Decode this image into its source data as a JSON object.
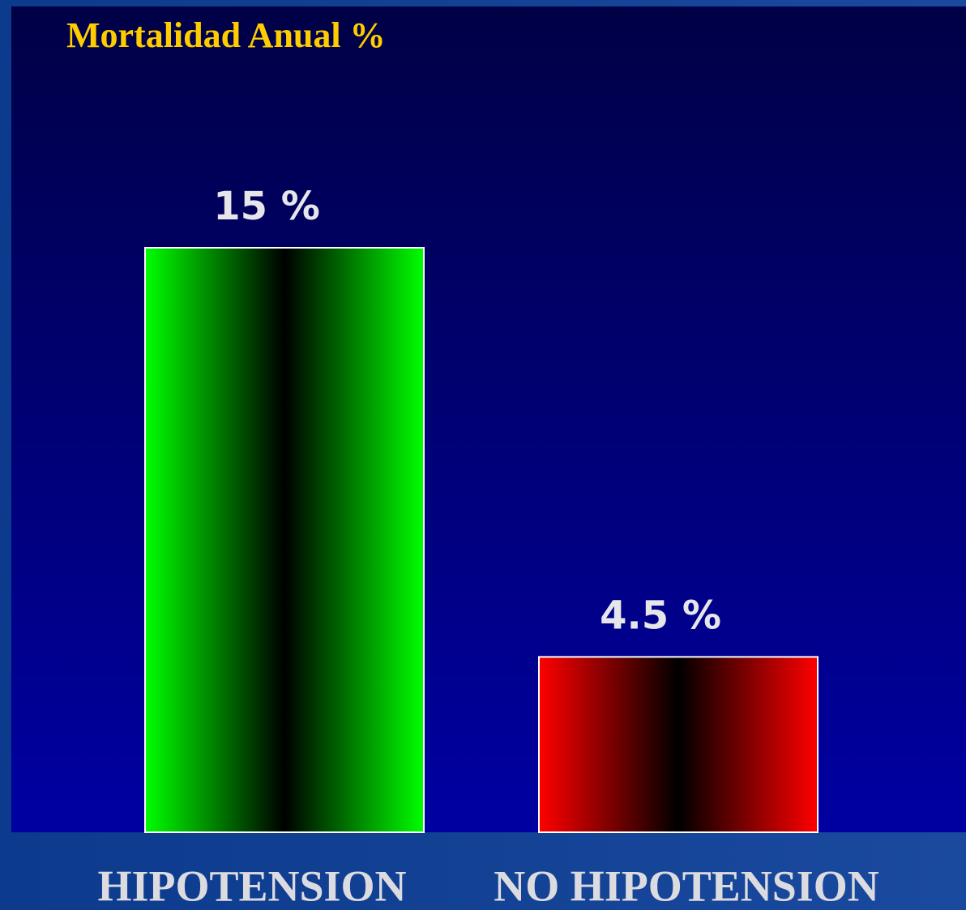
{
  "chart_data": {
    "type": "bar",
    "title": "Mortalidad Anual %",
    "categories": [
      "HIPOTENSION",
      "NO HIPOTENSION"
    ],
    "values": [
      15,
      4.5
    ],
    "value_labels": [
      "15 %",
      "4.5 %"
    ],
    "colors": [
      "#00ff00",
      "#ff0000"
    ]
  }
}
